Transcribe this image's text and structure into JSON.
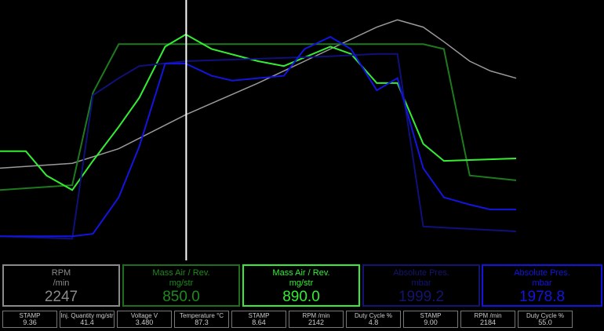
{
  "chart_data": {
    "type": "line",
    "xlim": [
      0,
      100
    ],
    "ylim": [
      0,
      100
    ],
    "grid": false,
    "cursor_x": 36,
    "series": [
      {
        "color": "#9a9a9a",
        "points": [
          [
            0,
            36
          ],
          [
            14,
            38
          ],
          [
            23,
            44
          ],
          [
            36,
            58
          ],
          [
            50,
            71
          ],
          [
            64,
            85
          ],
          [
            73,
            94
          ],
          [
            77,
            97
          ],
          [
            82,
            94
          ],
          [
            86,
            88
          ],
          [
            91,
            80
          ],
          [
            95,
            76
          ],
          [
            100,
            73
          ]
        ]
      },
      {
        "color": "#1e7a1e",
        "points": [
          [
            0,
            27
          ],
          [
            14,
            29
          ],
          [
            18,
            67
          ],
          [
            23,
            87
          ],
          [
            82,
            87
          ],
          [
            86,
            85
          ],
          [
            91,
            33
          ],
          [
            100,
            31
          ]
        ]
      },
      {
        "color": "#33ee33",
        "points": [
          [
            0,
            43
          ],
          [
            5,
            43
          ],
          [
            9,
            33
          ],
          [
            14,
            27
          ],
          [
            18,
            39
          ],
          [
            23,
            53
          ],
          [
            27,
            65
          ],
          [
            32,
            86
          ],
          [
            36,
            91
          ],
          [
            41,
            85
          ],
          [
            50,
            80
          ],
          [
            55,
            78
          ],
          [
            64,
            86
          ],
          [
            68,
            83
          ],
          [
            73,
            71
          ],
          [
            77,
            71
          ],
          [
            82,
            46
          ],
          [
            86,
            39
          ],
          [
            100,
            40
          ]
        ]
      },
      {
        "color": "#10107a",
        "points": [
          [
            0,
            8
          ],
          [
            14,
            7
          ],
          [
            18,
            66
          ],
          [
            23,
            73
          ],
          [
            27,
            78
          ],
          [
            36,
            80
          ],
          [
            64,
            82
          ],
          [
            73,
            83
          ],
          [
            77,
            83
          ],
          [
            82,
            12
          ],
          [
            100,
            10
          ]
        ]
      },
      {
        "color": "#1414e0",
        "points": [
          [
            0,
            8
          ],
          [
            14,
            8
          ],
          [
            18,
            9
          ],
          [
            23,
            24
          ],
          [
            27,
            45
          ],
          [
            32,
            79
          ],
          [
            36,
            79
          ],
          [
            41,
            74
          ],
          [
            45,
            72
          ],
          [
            55,
            74
          ],
          [
            59,
            85
          ],
          [
            64,
            90
          ],
          [
            68,
            85
          ],
          [
            73,
            68
          ],
          [
            77,
            73
          ],
          [
            82,
            36
          ],
          [
            86,
            24
          ],
          [
            91,
            21
          ],
          [
            95,
            19
          ],
          [
            100,
            19
          ]
        ]
      }
    ]
  },
  "panels": [
    {
      "title": "RPM",
      "unit": "/min",
      "value": "2247",
      "color": "#8a8a8a",
      "border": "#8a8a8a"
    },
    {
      "title": "Mass Air / Rev.",
      "unit": "mg/str",
      "value": "850.0",
      "color": "#1e8a1e",
      "border": "#1e6e1e"
    },
    {
      "title": "Mass Air / Rev.",
      "unit": "mg/str",
      "value": "890.0",
      "color": "#33ee33",
      "border": "#33ee33"
    },
    {
      "title": "Absolute Pres.",
      "unit": "mbar",
      "value": "1999.2",
      "color": "#141470",
      "border": "#141470"
    },
    {
      "title": "Absolute Pres.",
      "unit": "mbar",
      "value": "1978.8",
      "color": "#1414e0",
      "border": "#1414e0"
    }
  ],
  "boxes": [
    {
      "label": "STAMP",
      "value": "9.36"
    },
    {
      "label": "Inj. Quantity mg/str",
      "value": "41.4"
    },
    {
      "label": "Voltage V",
      "value": "3.480"
    },
    {
      "label": "Temperature °C",
      "value": "87.3"
    },
    {
      "label": "STAMP",
      "value": "8.64"
    },
    {
      "label": "RPM /min",
      "value": "2142"
    },
    {
      "label": "Duty Cycle %",
      "value": "4.8"
    },
    {
      "label": "STAMP",
      "value": "9.00"
    },
    {
      "label": "RPM /min",
      "value": "2184"
    },
    {
      "label": "Duty Cycle %",
      "value": "55.0"
    }
  ]
}
